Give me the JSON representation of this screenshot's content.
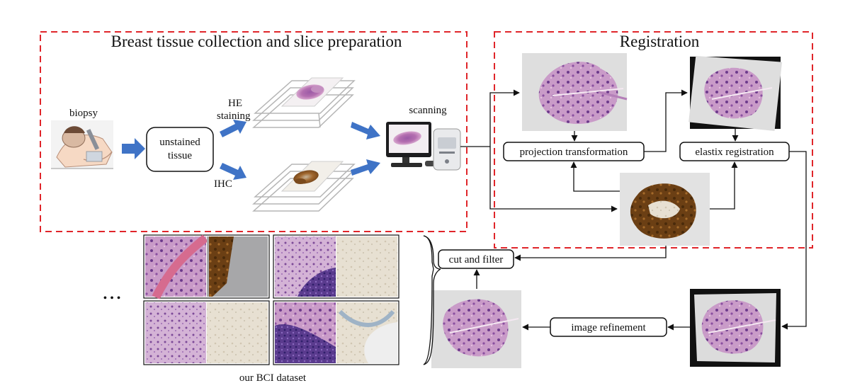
{
  "sections": {
    "collection_title": "Breast tissue collection and slice preparation",
    "registration_title": "Registration"
  },
  "labels": {
    "biopsy": "biopsy",
    "unstained_line1": "unstained",
    "unstained_line2": "tissue",
    "he_line1": "HE",
    "he_line2": "staining",
    "ihc": "IHC",
    "scanning": "scanning",
    "projection": "projection transformation",
    "elastix": "elastix registration",
    "cut_filter": "cut and filter",
    "refinement": "image refinement",
    "dataset": "our BCI dataset",
    "ellipsis": "• • •"
  },
  "colors": {
    "dashed_border": "#e0252a",
    "arrow_blue": "#3f73c6",
    "he_pink": "#b77bb4",
    "ihc_brown": "#8a5a2b"
  },
  "icons": [
    "patient-illustration",
    "glass-slide-he",
    "glass-slide-ihc",
    "scanner-computer"
  ]
}
